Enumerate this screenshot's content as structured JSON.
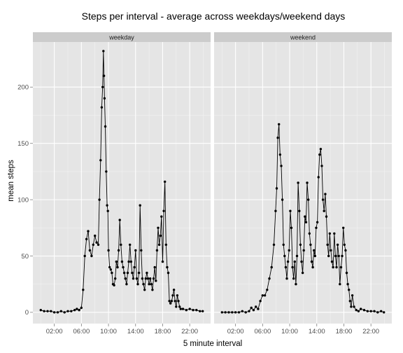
{
  "chart_data": {
    "type": "line",
    "title": "Steps per interval - average across weekdays/weekend days",
    "xlabel": "5 minute interval",
    "ylabel": "mean steps",
    "xlim_minutes": [
      -70,
      1505
    ],
    "ylim": [
      -10,
      240
    ],
    "grid": true,
    "legend": "none",
    "x_ticks": [
      {
        "label": "02:00",
        "minute": 120
      },
      {
        "label": "06:00",
        "minute": 360
      },
      {
        "label": "10:00",
        "minute": 600
      },
      {
        "label": "14:00",
        "minute": 840
      },
      {
        "label": "18:00",
        "minute": 1080
      },
      {
        "label": "22:00",
        "minute": 1320
      }
    ],
    "y_ticks": [
      0,
      50,
      100,
      150,
      200
    ],
    "panels": [
      {
        "label": "weekday",
        "points": [
          [
            0,
            2
          ],
          [
            30,
            1
          ],
          [
            60,
            1
          ],
          [
            90,
            1
          ],
          [
            120,
            0
          ],
          [
            150,
            0
          ],
          [
            180,
            1
          ],
          [
            210,
            0
          ],
          [
            240,
            1
          ],
          [
            270,
            1
          ],
          [
            300,
            2
          ],
          [
            320,
            3
          ],
          [
            340,
            2
          ],
          [
            360,
            4
          ],
          [
            375,
            20
          ],
          [
            390,
            50
          ],
          [
            405,
            65
          ],
          [
            420,
            72
          ],
          [
            435,
            55
          ],
          [
            450,
            50
          ],
          [
            465,
            60
          ],
          [
            480,
            68
          ],
          [
            495,
            62
          ],
          [
            510,
            60
          ],
          [
            520,
            100
          ],
          [
            530,
            135
          ],
          [
            540,
            182
          ],
          [
            548,
            200
          ],
          [
            555,
            232
          ],
          [
            560,
            210
          ],
          [
            565,
            190
          ],
          [
            572,
            165
          ],
          [
            580,
            125
          ],
          [
            588,
            95
          ],
          [
            595,
            90
          ],
          [
            600,
            55
          ],
          [
            610,
            40
          ],
          [
            620,
            38
          ],
          [
            630,
            35
          ],
          [
            640,
            25
          ],
          [
            650,
            24
          ],
          [
            660,
            30
          ],
          [
            670,
            45
          ],
          [
            680,
            40
          ],
          [
            690,
            55
          ],
          [
            700,
            82
          ],
          [
            710,
            60
          ],
          [
            720,
            45
          ],
          [
            730,
            40
          ],
          [
            740,
            35
          ],
          [
            750,
            30
          ],
          [
            760,
            25
          ],
          [
            770,
            35
          ],
          [
            780,
            45
          ],
          [
            790,
            60
          ],
          [
            800,
            45
          ],
          [
            810,
            35
          ],
          [
            820,
            30
          ],
          [
            830,
            40
          ],
          [
            840,
            55
          ],
          [
            850,
            30
          ],
          [
            860,
            25
          ],
          [
            870,
            35
          ],
          [
            880,
            95
          ],
          [
            890,
            55
          ],
          [
            900,
            30
          ],
          [
            910,
            25
          ],
          [
            920,
            20
          ],
          [
            930,
            30
          ],
          [
            940,
            35
          ],
          [
            950,
            30
          ],
          [
            960,
            25
          ],
          [
            970,
            30
          ],
          [
            980,
            25
          ],
          [
            990,
            20
          ],
          [
            1000,
            30
          ],
          [
            1010,
            40
          ],
          [
            1020,
            28
          ],
          [
            1030,
            55
          ],
          [
            1040,
            75
          ],
          [
            1050,
            60
          ],
          [
            1060,
            68
          ],
          [
            1070,
            85
          ],
          [
            1080,
            45
          ],
          [
            1090,
            90
          ],
          [
            1100,
            116
          ],
          [
            1110,
            60
          ],
          [
            1120,
            40
          ],
          [
            1130,
            35
          ],
          [
            1140,
            10
          ],
          [
            1150,
            8
          ],
          [
            1160,
            10
          ],
          [
            1170,
            15
          ],
          [
            1180,
            20
          ],
          [
            1190,
            10
          ],
          [
            1200,
            5
          ],
          [
            1210,
            15
          ],
          [
            1220,
            10
          ],
          [
            1230,
            5
          ],
          [
            1240,
            3
          ],
          [
            1260,
            3
          ],
          [
            1290,
            2
          ],
          [
            1320,
            3
          ],
          [
            1350,
            2
          ],
          [
            1380,
            2
          ],
          [
            1410,
            1
          ],
          [
            1435,
            1
          ]
        ]
      },
      {
        "label": "weekend",
        "points": [
          [
            0,
            0
          ],
          [
            30,
            0
          ],
          [
            60,
            0
          ],
          [
            90,
            0
          ],
          [
            120,
            0
          ],
          [
            150,
            0
          ],
          [
            180,
            1
          ],
          [
            210,
            0
          ],
          [
            240,
            1
          ],
          [
            260,
            4
          ],
          [
            280,
            2
          ],
          [
            300,
            5
          ],
          [
            320,
            3
          ],
          [
            340,
            10
          ],
          [
            360,
            15
          ],
          [
            380,
            15
          ],
          [
            400,
            20
          ],
          [
            420,
            30
          ],
          [
            440,
            40
          ],
          [
            460,
            60
          ],
          [
            475,
            90
          ],
          [
            485,
            110
          ],
          [
            495,
            155
          ],
          [
            505,
            167
          ],
          [
            515,
            140
          ],
          [
            525,
            130
          ],
          [
            535,
            100
          ],
          [
            545,
            60
          ],
          [
            555,
            50
          ],
          [
            565,
            40
          ],
          [
            575,
            30
          ],
          [
            585,
            45
          ],
          [
            595,
            55
          ],
          [
            605,
            90
          ],
          [
            615,
            75
          ],
          [
            625,
            40
          ],
          [
            635,
            30
          ],
          [
            645,
            45
          ],
          [
            655,
            25
          ],
          [
            665,
            50
          ],
          [
            675,
            115
          ],
          [
            685,
            90
          ],
          [
            695,
            60
          ],
          [
            705,
            45
          ],
          [
            715,
            35
          ],
          [
            725,
            55
          ],
          [
            735,
            85
          ],
          [
            745,
            80
          ],
          [
            755,
            115
          ],
          [
            765,
            100
          ],
          [
            775,
            70
          ],
          [
            785,
            60
          ],
          [
            795,
            45
          ],
          [
            805,
            40
          ],
          [
            815,
            55
          ],
          [
            825,
            50
          ],
          [
            835,
            75
          ],
          [
            845,
            80
          ],
          [
            855,
            120
          ],
          [
            865,
            140
          ],
          [
            875,
            145
          ],
          [
            885,
            130
          ],
          [
            895,
            100
          ],
          [
            905,
            90
          ],
          [
            915,
            105
          ],
          [
            925,
            85
          ],
          [
            935,
            60
          ],
          [
            945,
            50
          ],
          [
            955,
            70
          ],
          [
            965,
            55
          ],
          [
            975,
            45
          ],
          [
            985,
            40
          ],
          [
            995,
            70
          ],
          [
            1005,
            50
          ],
          [
            1015,
            40
          ],
          [
            1025,
            60
          ],
          [
            1035,
            50
          ],
          [
            1045,
            25
          ],
          [
            1055,
            40
          ],
          [
            1065,
            50
          ],
          [
            1075,
            75
          ],
          [
            1085,
            60
          ],
          [
            1095,
            55
          ],
          [
            1105,
            35
          ],
          [
            1115,
            25
          ],
          [
            1125,
            20
          ],
          [
            1135,
            10
          ],
          [
            1145,
            5
          ],
          [
            1155,
            15
          ],
          [
            1170,
            5
          ],
          [
            1190,
            2
          ],
          [
            1210,
            1
          ],
          [
            1230,
            3
          ],
          [
            1260,
            2
          ],
          [
            1290,
            1
          ],
          [
            1320,
            1
          ],
          [
            1350,
            1
          ],
          [
            1380,
            0
          ],
          [
            1410,
            1
          ],
          [
            1435,
            0
          ]
        ]
      }
    ]
  }
}
